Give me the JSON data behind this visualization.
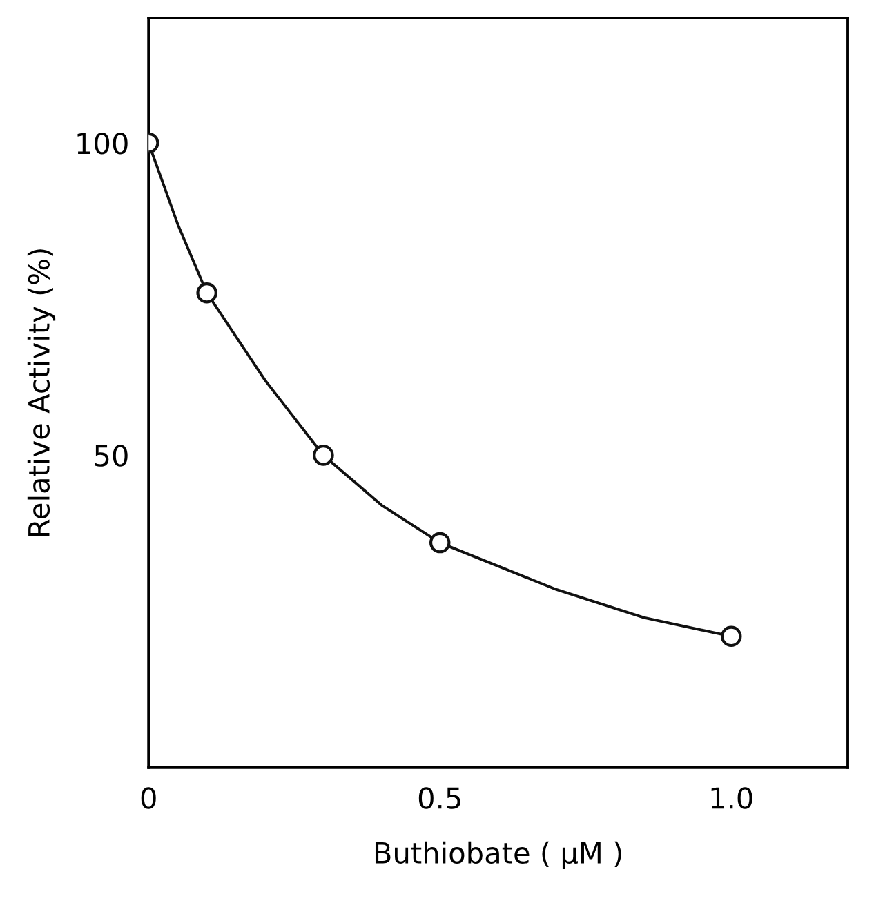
{
  "chart_data": {
    "type": "scatter",
    "xlabel": "Buthiobate ( μM )",
    "ylabel": "Relative Activity (%)",
    "series": [
      {
        "type": "line",
        "x": [
          0,
          0.05,
          0.1,
          0.2,
          0.3,
          0.4,
          0.5,
          0.7,
          0.85,
          1.0
        ],
        "values": [
          100,
          87,
          76,
          62,
          50,
          42,
          36,
          28.5,
          24,
          21
        ],
        "color": "#111111",
        "marker": "none",
        "line_style": "solid"
      },
      {
        "x": [
          0,
          0.1,
          0.3,
          0.5,
          1.0
        ],
        "values": [
          100,
          76,
          50,
          36,
          21
        ],
        "color": "#111111",
        "marker": "circle"
      }
    ],
    "xlim": [
      0,
      1.2
    ],
    "ylim": [
      0,
      120
    ],
    "xticks": [
      0,
      {
        "value": 0.5,
        "label": "0.5"
      },
      {
        "value": 1.0,
        "label": "1.0"
      }
    ],
    "yticks": [
      50,
      100
    ],
    "grid": false,
    "legend": false
  }
}
